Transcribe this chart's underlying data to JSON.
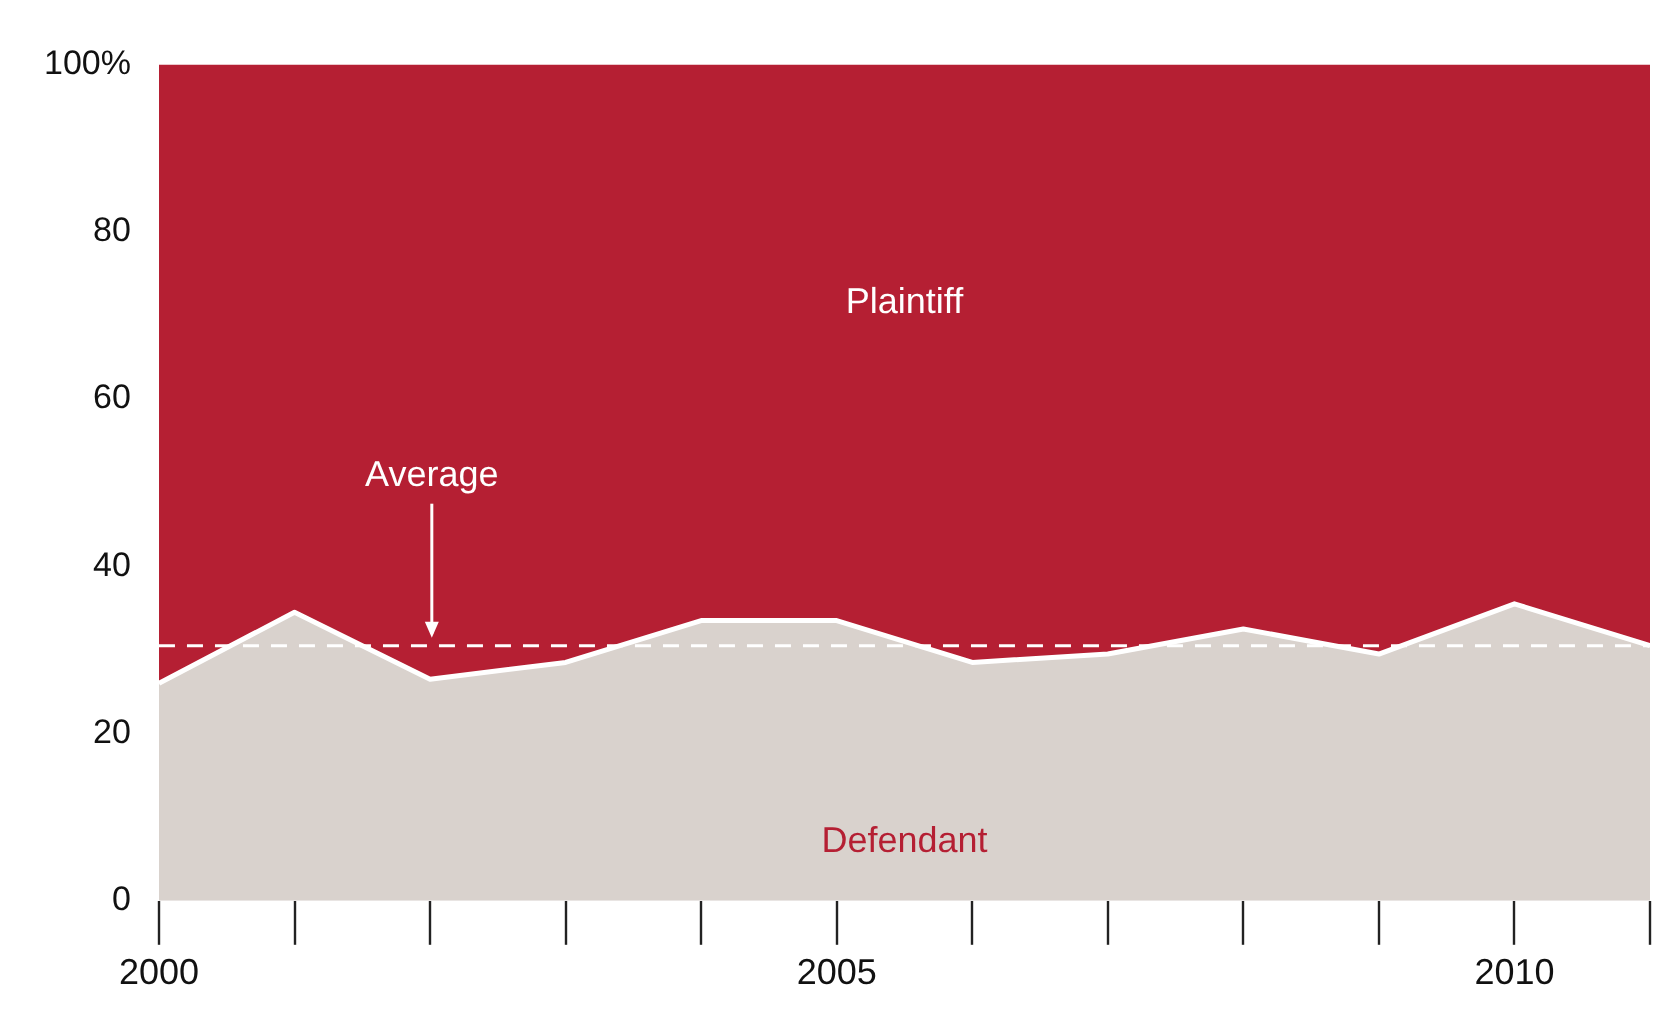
{
  "chart_data": {
    "type": "area",
    "stacked": true,
    "x": [
      2000,
      2001,
      2002,
      2003,
      2004,
      2005,
      2006,
      2007,
      2008,
      2009,
      2010,
      2011
    ],
    "series": [
      {
        "name": "Defendant",
        "color": "#d9d2cd",
        "values": [
          26,
          34.5,
          26.5,
          28.5,
          33.5,
          33.5,
          28.5,
          29.5,
          32.5,
          29.5,
          35.5,
          30.5
        ]
      },
      {
        "name": "Plaintiff",
        "color": "#b51f33",
        "values": [
          74,
          65.5,
          73.5,
          71.5,
          66.5,
          66.5,
          71.5,
          70.5,
          67.5,
          70.5,
          64.5,
          69.5
        ]
      }
    ],
    "xlim": [
      2000,
      2011
    ],
    "xticks": [
      2000,
      2005,
      2010
    ],
    "ylim": [
      0,
      100
    ],
    "yticks": [
      0,
      20,
      40,
      60,
      80,
      {
        "value": 100,
        "label": "100%"
      }
    ],
    "grid": false,
    "legend": false,
    "ref_lines": [
      {
        "axis": "y",
        "value": 30.5,
        "label": "Average",
        "color": "#ffffff",
        "line_style": "dashed"
      }
    ]
  }
}
